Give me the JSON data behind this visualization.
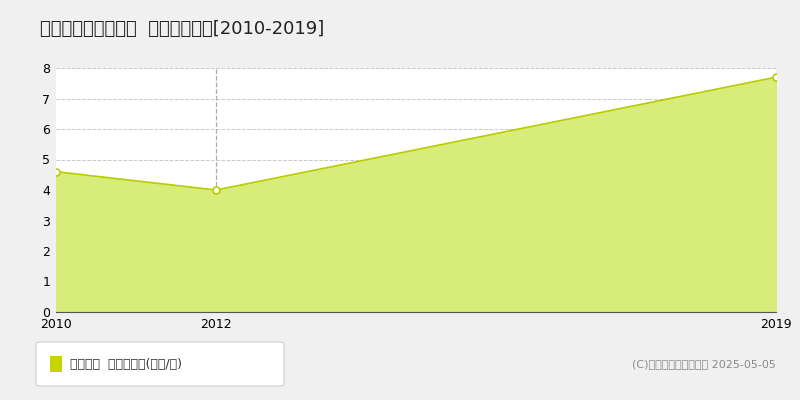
{
  "title": "有田郡有田川町市場  土地価格推移[2010-2019]",
  "years": [
    2010,
    2012,
    2019
  ],
  "values": [
    4.6,
    4.0,
    7.7
  ],
  "xmin": 2010,
  "xmax": 2019,
  "ymin": 0,
  "ymax": 8,
  "yticks": [
    0,
    1,
    2,
    3,
    4,
    5,
    6,
    7,
    8
  ],
  "xticks": [
    2010,
    2012,
    2019
  ],
  "line_color": "#b8cc00",
  "fill_color": "#d8ec7a",
  "fill_alpha": 1.0,
  "marker_color": "#ffffff",
  "marker_edge_color": "#b8cc00",
  "vline_year": 2012,
  "vline_color": "#aaaaaa",
  "grid_color": "#c8c8c8",
  "plot_bg_color": "#ffffff",
  "outer_bg_color": "#f0f0f0",
  "legend_label": "土地価格  平均坪単価(万円/坪)",
  "legend_square_color": "#c8d400",
  "copyright_text": "(C)土地価格ドットコム 2025-05-05",
  "title_fontsize": 13,
  "tick_fontsize": 9,
  "legend_fontsize": 9,
  "copyright_fontsize": 8
}
